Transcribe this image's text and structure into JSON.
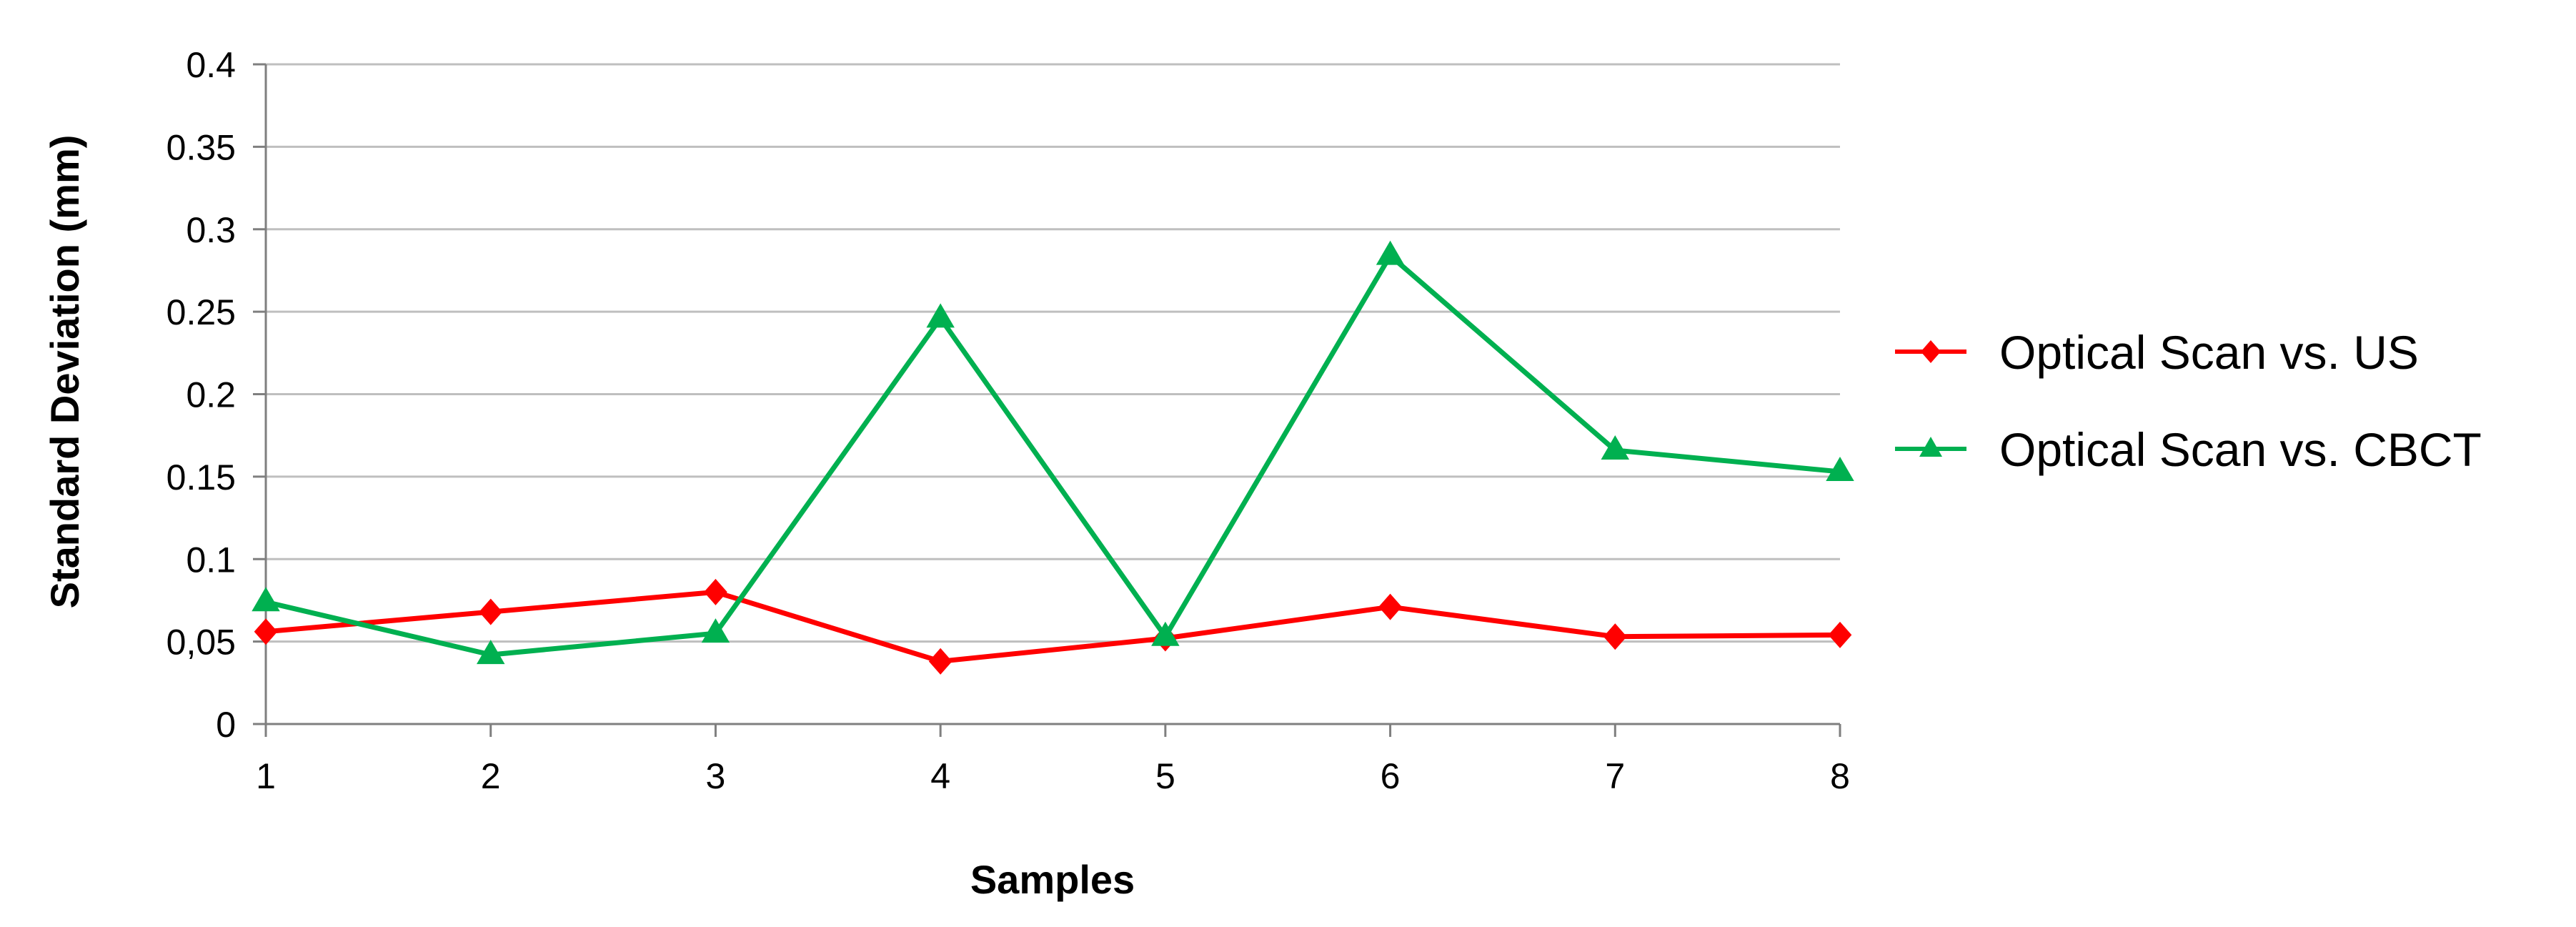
{
  "chart_data": {
    "type": "line",
    "title": "",
    "xlabel": "Samples",
    "ylabel": "Standard Deviation (mm)",
    "x": [
      1,
      2,
      3,
      4,
      5,
      6,
      7,
      8
    ],
    "x_tick_labels": [
      "1",
      "2",
      "3",
      "4",
      "5",
      "6",
      "7",
      "8"
    ],
    "ylim": [
      0,
      0.4
    ],
    "y_tick_labels": [
      "0",
      "0,05",
      "0.1",
      "0.15",
      "0.2",
      "0.25",
      "0.3",
      "0.35",
      "0.4"
    ],
    "y_ticks": [
      0,
      0.05,
      0.1,
      0.15,
      0.2,
      0.25,
      0.3,
      0.35,
      0.4
    ],
    "grid": "horizontal",
    "legend_position": "right",
    "series": [
      {
        "name": "Optical Scan vs. US",
        "color": "#ff0000",
        "marker": "diamond",
        "values": [
          0.056,
          0.068,
          0.08,
          0.038,
          0.052,
          0.071,
          0.053,
          0.054
        ]
      },
      {
        "name": "Optical Scan vs. CBCT",
        "color": "#00b050",
        "marker": "triangle",
        "values": [
          0.074,
          0.042,
          0.055,
          0.246,
          0.053,
          0.284,
          0.166,
          0.153
        ]
      }
    ]
  }
}
